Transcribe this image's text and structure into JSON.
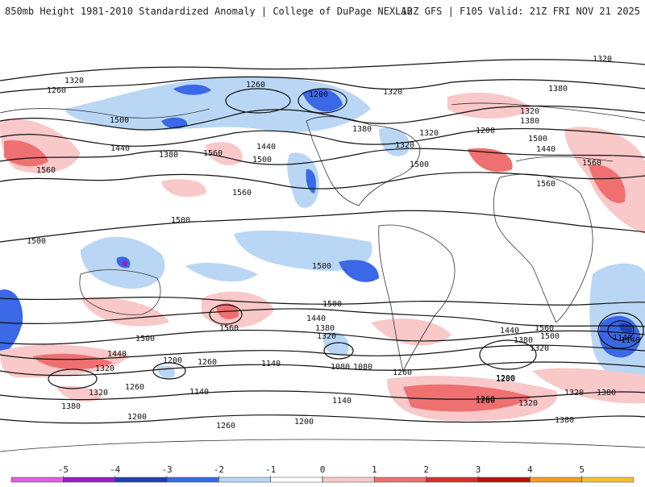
{
  "header": {
    "title_left": "850mb Height 1981-2010 Standardized Anomaly | College of DuPage NEXLAB",
    "title_right": "12Z GFS | F105 Valid: 21Z FRI NOV 21 2025"
  },
  "colorbar": {
    "ticks": [
      "-5",
      "-4",
      "-3",
      "-2",
      "-1",
      "0",
      "1",
      "2",
      "3",
      "4",
      "5"
    ],
    "colors": [
      "#e060e0",
      "#9a1cc8",
      "#1f3fb8",
      "#3a68e6",
      "#b9d7f5",
      "#ffffff",
      "#f9c8c8",
      "#ef7070",
      "#d83030",
      "#b81010",
      "#f0a020",
      "#f5c030"
    ]
  },
  "contour_labels": [
    "1320",
    "1260",
    "1500",
    "1560",
    "1440",
    "1380",
    "1200",
    "1140",
    "1080",
    "1320",
    "1380",
    "1320",
    "1380",
    "1260",
    "1500",
    "1560",
    "1500",
    "1560",
    "1440",
    "1320",
    "1200",
    "1260",
    "1440",
    "1320",
    "1500",
    "1500",
    "1560",
    "1500",
    "1500",
    "1500",
    "1440",
    "1380",
    "1320",
    "1200",
    "1260",
    "1140",
    "1260",
    "1380",
    "1320",
    "1200",
    "1140",
    "1260",
    "1200",
    "1080",
    "1140",
    "1260",
    "1320",
    "1380",
    "1560",
    "1500",
    "1440",
    "1380",
    "1320",
    "1200",
    "1140",
    "1260",
    "1320",
    "1380",
    "1320",
    "1200",
    "1560",
    "1500",
    "1560",
    "1440",
    "1380",
    "1320"
  ]
}
